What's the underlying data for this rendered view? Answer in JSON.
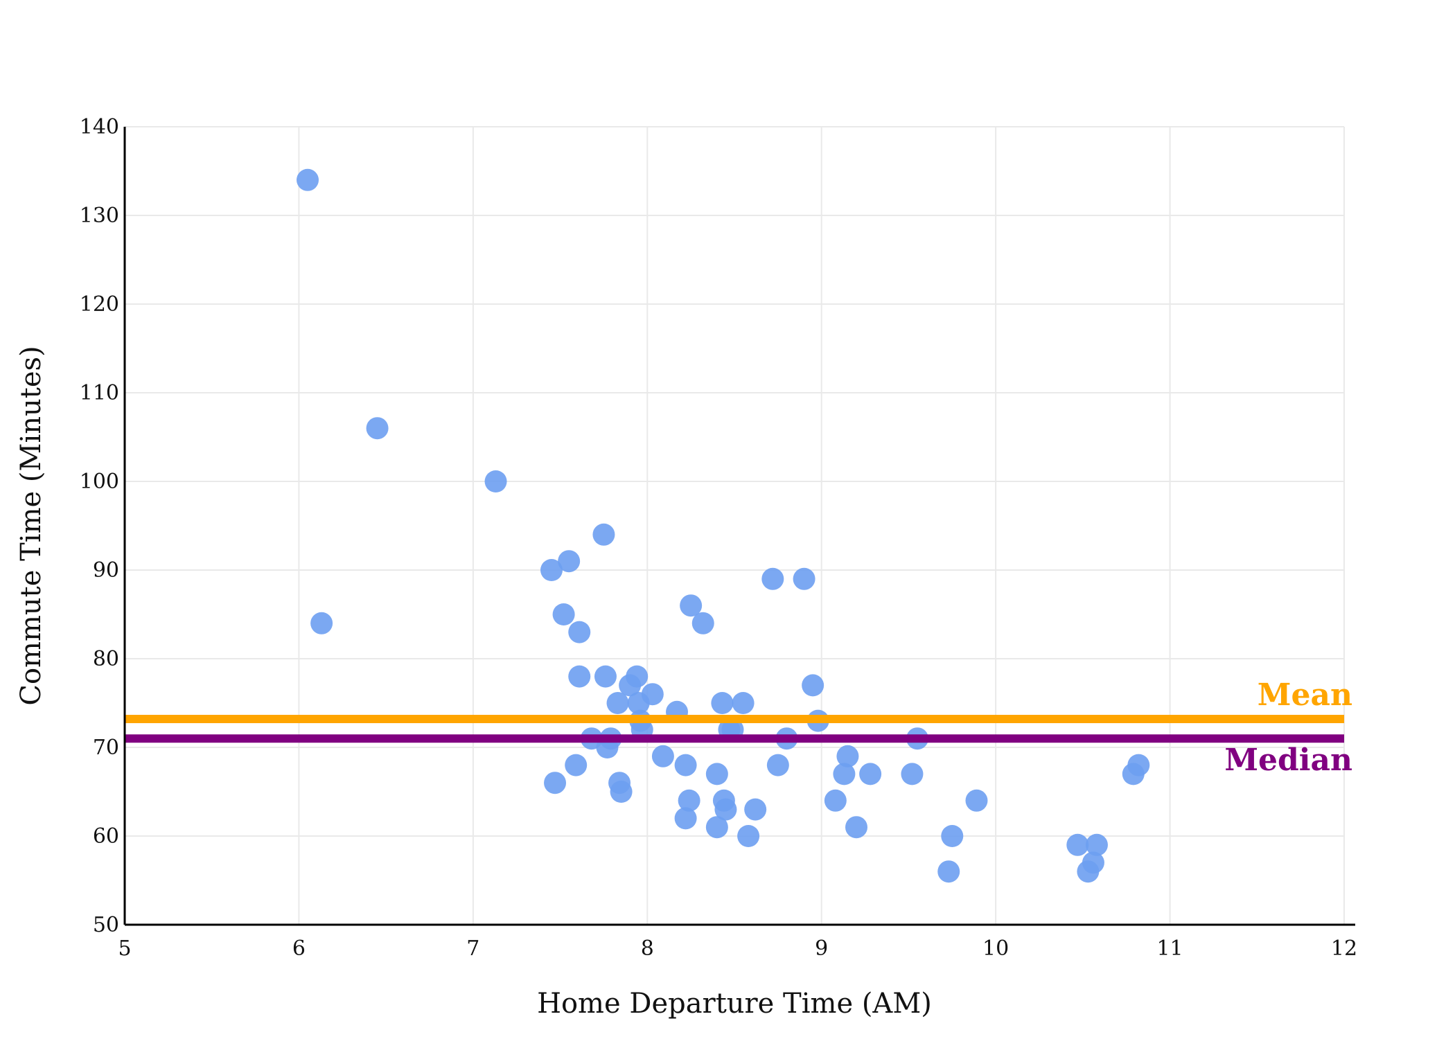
{
  "chart_data": {
    "type": "scatter",
    "xlabel": "Home Departure Time (AM)",
    "ylabel": "Commute Time (Minutes)",
    "xlim": [
      5,
      12
    ],
    "ylim": [
      50,
      140
    ],
    "x_ticks": [
      "5",
      "6",
      "7",
      "8",
      "9",
      "10",
      "11",
      "12"
    ],
    "y_ticks": [
      "50",
      "60",
      "70",
      "80",
      "90",
      "100",
      "110",
      "120",
      "130",
      "140"
    ],
    "grid": true,
    "point_color": "#6d9ef1",
    "points": [
      {
        "x": 6.05,
        "y": 134
      },
      {
        "x": 6.45,
        "y": 106
      },
      {
        "x": 6.13,
        "y": 84
      },
      {
        "x": 7.13,
        "y": 100
      },
      {
        "x": 7.45,
        "y": 90
      },
      {
        "x": 7.55,
        "y": 91
      },
      {
        "x": 7.52,
        "y": 85
      },
      {
        "x": 7.61,
        "y": 83
      },
      {
        "x": 7.75,
        "y": 94
      },
      {
        "x": 7.61,
        "y": 78
      },
      {
        "x": 7.76,
        "y": 78
      },
      {
        "x": 7.47,
        "y": 66
      },
      {
        "x": 7.59,
        "y": 68
      },
      {
        "x": 7.68,
        "y": 71
      },
      {
        "x": 7.77,
        "y": 70
      },
      {
        "x": 7.79,
        "y": 71
      },
      {
        "x": 7.84,
        "y": 66
      },
      {
        "x": 7.85,
        "y": 65
      },
      {
        "x": 7.83,
        "y": 75
      },
      {
        "x": 7.9,
        "y": 77
      },
      {
        "x": 7.94,
        "y": 78
      },
      {
        "x": 7.95,
        "y": 75
      },
      {
        "x": 7.96,
        "y": 73
      },
      {
        "x": 7.97,
        "y": 72
      },
      {
        "x": 8.03,
        "y": 76
      },
      {
        "x": 8.09,
        "y": 69
      },
      {
        "x": 8.17,
        "y": 74
      },
      {
        "x": 8.22,
        "y": 68
      },
      {
        "x": 8.22,
        "y": 62
      },
      {
        "x": 8.24,
        "y": 64
      },
      {
        "x": 8.25,
        "y": 86
      },
      {
        "x": 8.32,
        "y": 84
      },
      {
        "x": 8.4,
        "y": 67
      },
      {
        "x": 8.4,
        "y": 61
      },
      {
        "x": 8.43,
        "y": 75
      },
      {
        "x": 8.44,
        "y": 64
      },
      {
        "x": 8.45,
        "y": 63
      },
      {
        "x": 8.47,
        "y": 72
      },
      {
        "x": 8.49,
        "y": 72
      },
      {
        "x": 8.55,
        "y": 75
      },
      {
        "x": 8.58,
        "y": 60
      },
      {
        "x": 8.62,
        "y": 63
      },
      {
        "x": 8.72,
        "y": 89
      },
      {
        "x": 8.75,
        "y": 68
      },
      {
        "x": 8.8,
        "y": 71
      },
      {
        "x": 8.9,
        "y": 89
      },
      {
        "x": 8.95,
        "y": 77
      },
      {
        "x": 8.98,
        "y": 73
      },
      {
        "x": 9.08,
        "y": 64
      },
      {
        "x": 9.13,
        "y": 67
      },
      {
        "x": 9.15,
        "y": 69
      },
      {
        "x": 9.2,
        "y": 61
      },
      {
        "x": 9.28,
        "y": 67
      },
      {
        "x": 9.52,
        "y": 67
      },
      {
        "x": 9.55,
        "y": 71
      },
      {
        "x": 9.73,
        "y": 56
      },
      {
        "x": 9.75,
        "y": 60
      },
      {
        "x": 9.89,
        "y": 64
      },
      {
        "x": 10.47,
        "y": 59
      },
      {
        "x": 10.53,
        "y": 56
      },
      {
        "x": 10.56,
        "y": 57
      },
      {
        "x": 10.58,
        "y": 59
      },
      {
        "x": 10.79,
        "y": 67
      },
      {
        "x": 10.82,
        "y": 68
      }
    ],
    "reference_lines": [
      {
        "name": "Mean",
        "value": 73.2,
        "color": "#ffa500"
      },
      {
        "name": "Median",
        "value": 71,
        "color": "#800080"
      }
    ]
  }
}
